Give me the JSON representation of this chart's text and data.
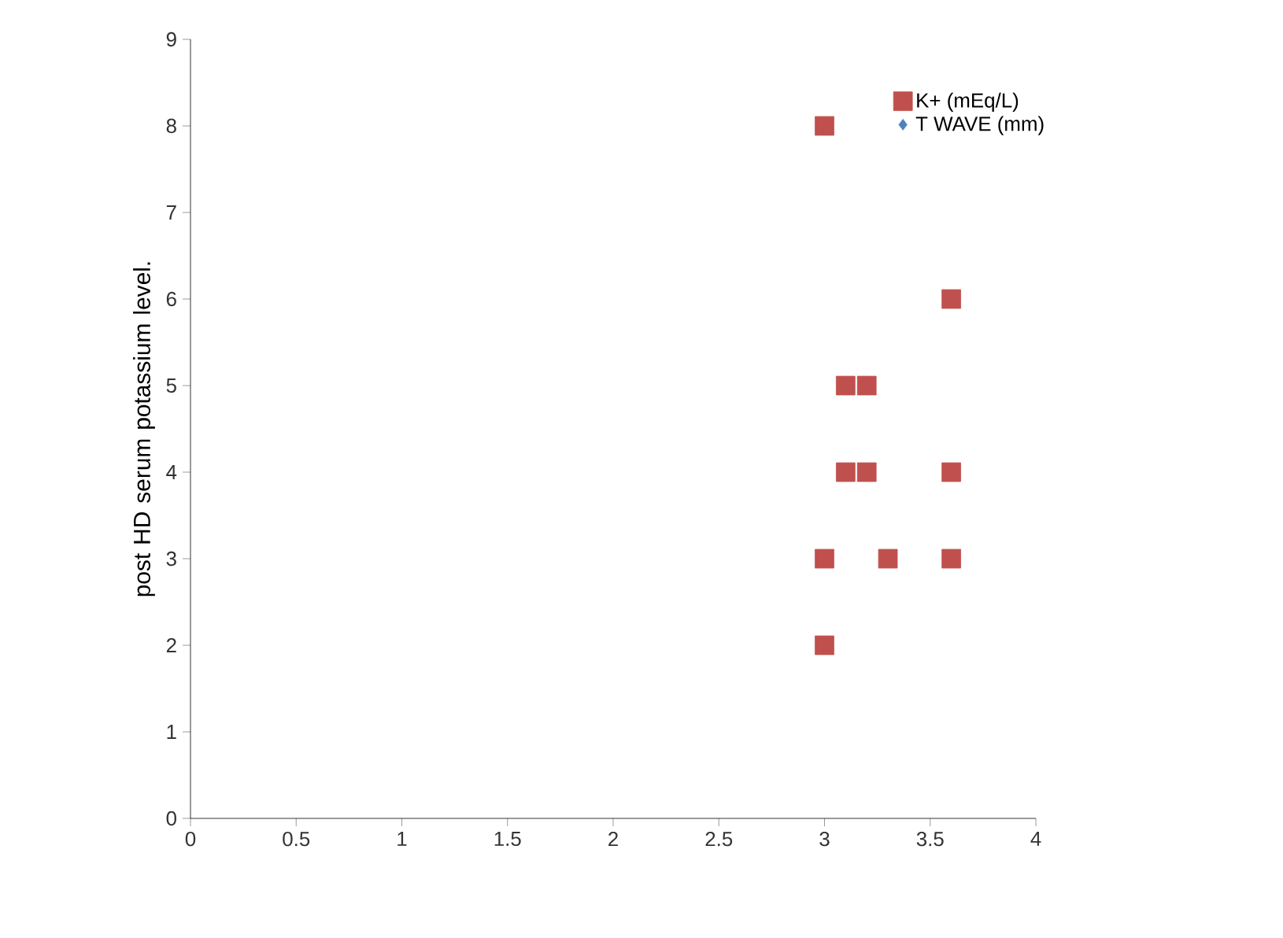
{
  "chart_data": {
    "type": "scatter",
    "ylabel": "post HD serum  potassium level.",
    "xlim": [
      0,
      4
    ],
    "ylim": [
      0,
      9
    ],
    "xticks": [
      0,
      0.5,
      1,
      1.5,
      2,
      2.5,
      3,
      3.5,
      4
    ],
    "yticks": [
      0,
      1,
      2,
      3,
      4,
      5,
      6,
      7,
      8,
      9
    ],
    "grid": false,
    "legend": "top right",
    "series": [
      {
        "name": "K+   (mEq/L)",
        "color": "#c0504d",
        "marker": "square",
        "x": [
          3.0,
          3.6,
          3.1,
          3.2,
          3.1,
          3.2,
          3.6,
          3.0,
          3.3,
          3.6,
          3.0
        ],
        "values": [
          8,
          6,
          5,
          5,
          4,
          4,
          4,
          3,
          3,
          3,
          2
        ]
      },
      {
        "name": "T WAVE (mm)",
        "color": "#4f81bd",
        "marker": "diamond"
      }
    ]
  }
}
